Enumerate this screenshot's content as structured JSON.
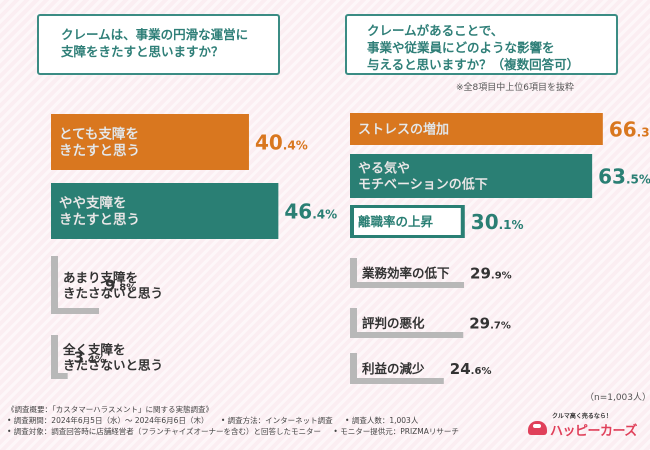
{
  "questions": {
    "left": [
      "クレームは、事業の円滑な運営に",
      "支障をきたすと思いますか？"
    ],
    "right": [
      "クレームがあることで、",
      "事業や従業員にどのような影響を",
      "与えると思いますか？（複数回答可）"
    ]
  },
  "notes": {
    "top": "※全8項目中上位6項目を抜粋",
    "sample": "（n=1,003人）"
  },
  "colors": {
    "orange": "#d9771f",
    "teal": "#2a7f74",
    "gray": "#b8b8b8"
  },
  "chart_data": [
    {
      "type": "bar",
      "orientation": "horizontal",
      "title": "クレームは、事業の円滑な運営に支障をきたすと思いますか？",
      "categories": [
        [
          "とても支障を",
          "きたすと思う"
        ],
        [
          "やや支障を",
          "きたすと思う"
        ],
        [
          "あまり支障を",
          "きたさないと思う"
        ],
        [
          "全く支障を",
          "きたさないと思う"
        ]
      ],
      "values": [
        40.4,
        46.4,
        9.8,
        3.4
      ],
      "unit": "%",
      "value_labels": [
        [
          "40",
          ".4",
          "%"
        ],
        [
          "46",
          ".4",
          "%"
        ],
        [
          "9",
          ".8",
          "%"
        ],
        [
          "3",
          ".4",
          "%"
        ]
      ],
      "styles": [
        "orange",
        "teal",
        "gray",
        "gray"
      ],
      "xlim": [
        0,
        50
      ]
    },
    {
      "type": "bar",
      "orientation": "horizontal",
      "title": "クレームがあることで、事業や従業員にどのような影響を与えると思いますか？（複数回答可）",
      "categories": [
        [
          "ストレスの増加"
        ],
        [
          "やる気や",
          "モチベーションの低下"
        ],
        [
          "離職率の上昇"
        ],
        [
          "業務効率の低下"
        ],
        [
          "評判の悪化"
        ],
        [
          "利益の減少"
        ]
      ],
      "values": [
        66.3,
        63.5,
        30.1,
        29.9,
        29.7,
        24.6
      ],
      "unit": "%",
      "value_labels": [
        [
          "66",
          ".3",
          "%"
        ],
        [
          "63",
          ".5",
          "%"
        ],
        [
          "30",
          ".1",
          "%"
        ],
        [
          "29",
          ".9",
          "%"
        ],
        [
          "29",
          ".7",
          "%"
        ],
        [
          "24",
          ".6",
          "%"
        ]
      ],
      "styles": [
        "orange",
        "teal",
        "teal",
        "gray",
        "gray",
        "gray"
      ],
      "xlim": [
        0,
        75
      ]
    }
  ],
  "footer": {
    "rows": [
      [
        "《調査概要：「カスタマーハラスメント」に関する実態調査》"
      ],
      [
        "• 調査期間：2024年6月5日（水）〜 2024年6月6日（木）",
        "• 調査方法：インターネット調査",
        "• 調査人数：1,003人"
      ],
      [
        "• 調査対象：調査回答時に店舗経営者（フランチャイズオーナーを含む）と回答したモニター",
        "• モニター提供元：PRIZMAリサーチ"
      ]
    ]
  },
  "logo": {
    "tagline": "クルマ高く売るなら！",
    "name": "ハッピーカーズ"
  }
}
